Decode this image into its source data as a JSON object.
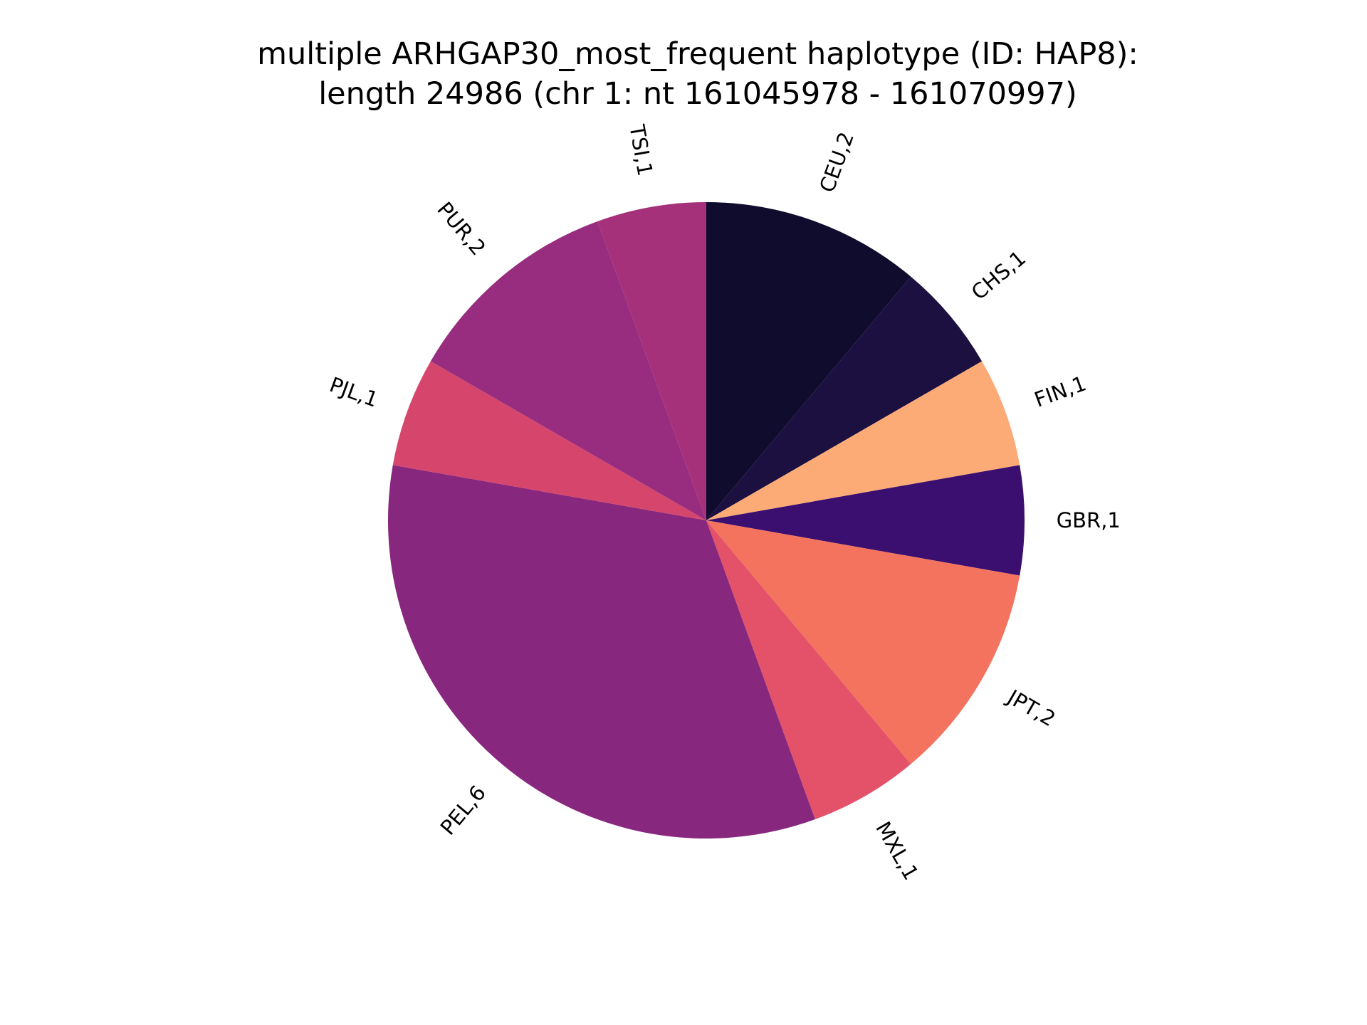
{
  "chart_data": {
    "type": "pie",
    "title_lines": [
      "multiple ARHGAP30_most_frequent haplotype (ID: HAP8):",
      "length 24986 (chr 1: nt 161045978 - 161070997)"
    ],
    "start_angle_deg": 90,
    "direction": "clockwise",
    "slices": [
      {
        "label": "CEU,2",
        "value": 2,
        "color": "#100c2e"
      },
      {
        "label": "CHS,1",
        "value": 1,
        "color": "#1b1040"
      },
      {
        "label": "FIN,1",
        "value": 1,
        "color": "#fcaa76"
      },
      {
        "label": "GBR,1",
        "value": 1,
        "color": "#3b0f6f"
      },
      {
        "label": "JPT,2",
        "value": 2,
        "color": "#f4735f"
      },
      {
        "label": "MXL,1",
        "value": 1,
        "color": "#e4526a"
      },
      {
        "label": "PEL,6",
        "value": 6,
        "color": "#88277e"
      },
      {
        "label": "PJL,1",
        "value": 1,
        "color": "#d6456c"
      },
      {
        "label": "PUR,2",
        "value": 2,
        "color": "#982d80"
      },
      {
        "label": "TSI,1",
        "value": 1,
        "color": "#a5317a"
      }
    ]
  }
}
